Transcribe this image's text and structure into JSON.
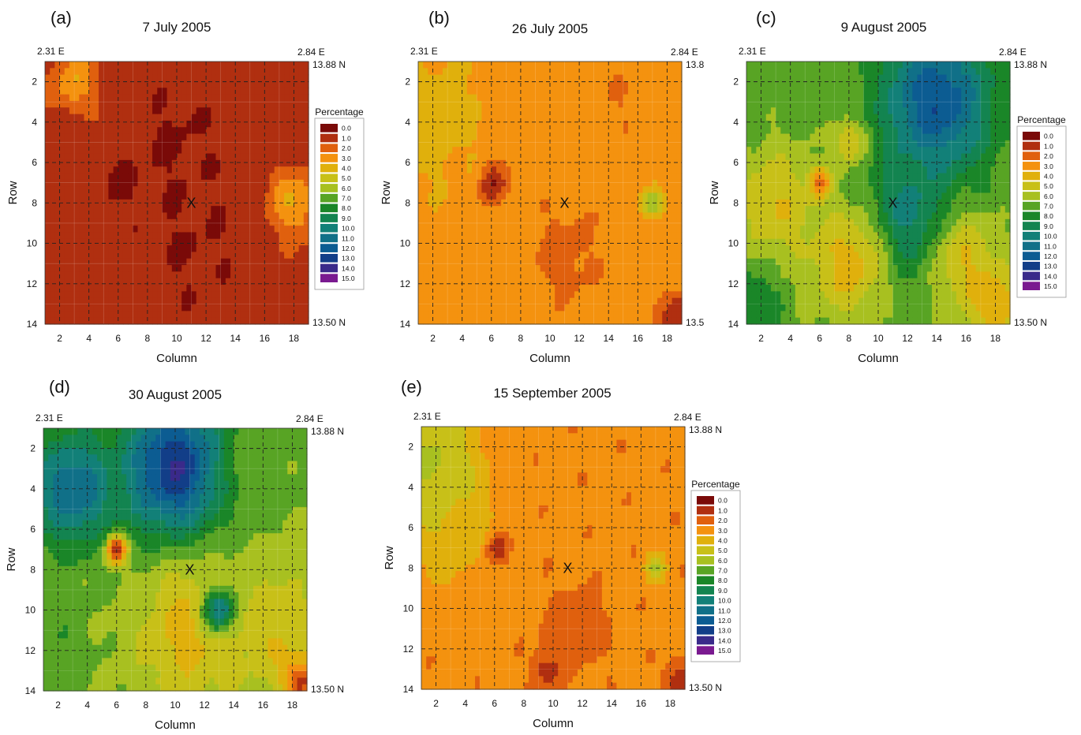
{
  "figure": {
    "colorbar_title": "Percentage"
  },
  "chart_data": [
    {
      "type": "heatmap",
      "panel": "(a)",
      "title": "7 July 2005",
      "xlabel": "Column",
      "ylabel": "Row",
      "xlim": [
        1,
        19
      ],
      "ylim": [
        14,
        1
      ],
      "xticks": [
        "2",
        "4",
        "6",
        "8",
        "10",
        "12",
        "14",
        "16",
        "18"
      ],
      "yticks": [
        "2",
        "4",
        "6",
        "8",
        "10",
        "12",
        "14"
      ],
      "corners": {
        "top_left": "2.31 E",
        "top_right": "2.84 E",
        "right_top": "13.88 N",
        "right_bottom": "13.50 N"
      },
      "marker": {
        "label": "X",
        "col": 11,
        "row": 8
      },
      "base_value": 1.0,
      "features": [
        {
          "col": 6,
          "row": 7,
          "value": 0.0,
          "spread": 0.8
        },
        {
          "col": 11,
          "row": 10,
          "value": 0.5,
          "spread": 2.5
        },
        {
          "col": 3,
          "row": 2,
          "value": 3.5,
          "spread": 1.0
        },
        {
          "col": 18,
          "row": 8,
          "value": 3.5,
          "spread": 1.2
        },
        {
          "col": 10,
          "row": 5,
          "value": 0.4,
          "spread": 2.0
        }
      ]
    },
    {
      "type": "heatmap",
      "panel": "(b)",
      "title": "26 July 2005",
      "xlabel": "Column",
      "ylabel": "Row",
      "xlim": [
        1,
        19
      ],
      "ylim": [
        14,
        1
      ],
      "xticks": [
        "2",
        "4",
        "6",
        "8",
        "10",
        "12",
        "14",
        "16",
        "18"
      ],
      "yticks": [
        "2",
        "4",
        "6",
        "8",
        "10",
        "12",
        "14"
      ],
      "corners": {
        "top_left": "2.31 E",
        "top_right": "2.84 E",
        "right_top": "13.8",
        "right_bottom": "13.5"
      },
      "marker": {
        "label": "X",
        "col": 11,
        "row": 8
      },
      "base_value": 3.0,
      "features": [
        {
          "col": 6,
          "row": 7,
          "value": 0.0,
          "spread": 0.7
        },
        {
          "col": 11,
          "row": 10.5,
          "value": 2.0,
          "spread": 1.6
        },
        {
          "col": 18.5,
          "row": 13.5,
          "value": 0.5,
          "spread": 0.8
        },
        {
          "col": 2,
          "row": 4,
          "value": 4.0,
          "spread": 2.5
        },
        {
          "col": 17,
          "row": 8,
          "value": 6.0,
          "spread": 0.5
        },
        {
          "col": 15,
          "row": 3,
          "value": 2.5,
          "spread": 1.0
        }
      ]
    },
    {
      "type": "heatmap",
      "panel": "(c)",
      "title": "9 August 2005",
      "xlabel": "Column",
      "ylabel": "Row",
      "xlim": [
        1,
        19
      ],
      "ylim": [
        14,
        1
      ],
      "xticks": [
        "2",
        "4",
        "6",
        "8",
        "10",
        "12",
        "14",
        "16",
        "18"
      ],
      "yticks": [
        "2",
        "4",
        "6",
        "8",
        "10",
        "12",
        "14"
      ],
      "corners": {
        "top_left": "2.31 E",
        "top_right": "2.84 E",
        "right_top": "13.88 N",
        "right_bottom": "13.50 N"
      },
      "marker": {
        "label": "X",
        "col": 11,
        "row": 8
      },
      "base_value": 7.0,
      "features": [
        {
          "col": 14,
          "row": 3,
          "value": 12.5,
          "spread": 2.5
        },
        {
          "col": 12,
          "row": 9,
          "value": 10.5,
          "spread": 2.0
        },
        {
          "col": 6,
          "row": 7,
          "value": 1.0,
          "spread": 0.5
        },
        {
          "col": 3,
          "row": 8,
          "value": 4.5,
          "spread": 2.0
        },
        {
          "col": 8,
          "row": 11,
          "value": 4.0,
          "spread": 2.0
        },
        {
          "col": 16,
          "row": 11,
          "value": 4.5,
          "spread": 1.8
        },
        {
          "col": 18,
          "row": 13,
          "value": 3.5,
          "spread": 1.2
        },
        {
          "col": 8,
          "row": 5,
          "value": 4.5,
          "spread": 0.8
        },
        {
          "col": 1.5,
          "row": 13,
          "value": 8.5,
          "spread": 1.2
        }
      ]
    },
    {
      "type": "heatmap",
      "panel": "(d)",
      "title": "30 August 2005",
      "xlabel": "Column",
      "ylabel": "Row",
      "xlim": [
        1,
        19
      ],
      "ylim": [
        14,
        1
      ],
      "xticks": [
        "2",
        "4",
        "6",
        "8",
        "10",
        "12",
        "14",
        "16",
        "18"
      ],
      "yticks": [
        "2",
        "4",
        "6",
        "8",
        "10",
        "12",
        "14"
      ],
      "corners": {
        "top_left": "2.31 E",
        "top_right": "2.84 E",
        "right_top": "13.88 N",
        "right_bottom": "13.50 N"
      },
      "marker": {
        "label": "X",
        "col": 11,
        "row": 8
      },
      "base_value": 6.5,
      "features": [
        {
          "col": 10,
          "row": 3,
          "value": 13.5,
          "spread": 2.5
        },
        {
          "col": 3,
          "row": 4,
          "value": 11.5,
          "spread": 2.0
        },
        {
          "col": 16,
          "row": 3,
          "value": 7.0,
          "spread": 1.8
        },
        {
          "col": 6,
          "row": 7,
          "value": 0.5,
          "spread": 0.5
        },
        {
          "col": 11,
          "row": 11,
          "value": 4.0,
          "spread": 2.5
        },
        {
          "col": 17,
          "row": 11,
          "value": 4.5,
          "spread": 2.0
        },
        {
          "col": 13,
          "row": 10,
          "value": 10.5,
          "spread": 0.8
        },
        {
          "col": 18.5,
          "row": 13.5,
          "value": 1.0,
          "spread": 0.8
        },
        {
          "col": 2,
          "row": 12,
          "value": 7.5,
          "spread": 1.5
        }
      ]
    },
    {
      "type": "heatmap",
      "panel": "(e)",
      "title": "15 September 2005",
      "xlabel": "Column",
      "ylabel": "Row",
      "xlim": [
        1,
        19
      ],
      "ylim": [
        14,
        1
      ],
      "xticks": [
        "2",
        "4",
        "6",
        "8",
        "10",
        "12",
        "14",
        "16",
        "18"
      ],
      "yticks": [
        "2",
        "4",
        "6",
        "8",
        "10",
        "12",
        "14"
      ],
      "corners": {
        "top_left": "2.31 E",
        "top_right": "2.84 E",
        "right_top": "13.88 N",
        "right_bottom": "13.50 N"
      },
      "marker": {
        "label": "X",
        "col": 11,
        "row": 8
      },
      "base_value": 2.8,
      "features": [
        {
          "col": 6,
          "row": 7,
          "value": 0.0,
          "spread": 0.6
        },
        {
          "col": 2,
          "row": 3,
          "value": 6.0,
          "spread": 2.0
        },
        {
          "col": 3,
          "row": 6,
          "value": 4.5,
          "spread": 2.0
        },
        {
          "col": 11.5,
          "row": 11,
          "value": 1.5,
          "spread": 1.3
        },
        {
          "col": 9.5,
          "row": 13,
          "value": 1.0,
          "spread": 0.7
        },
        {
          "col": 18.5,
          "row": 13.5,
          "value": 1.0,
          "spread": 0.7
        },
        {
          "col": 17,
          "row": 8,
          "value": 5.5,
          "spread": 0.5
        }
      ]
    }
  ],
  "legend": {
    "labels": [
      "0.0",
      "1.0",
      "2.0",
      "3.0",
      "4.0",
      "5.0",
      "6.0",
      "7.0",
      "8.0",
      "9.0",
      "10.0",
      "11.0",
      "12.0",
      "13.0",
      "14.0",
      "15.0"
    ],
    "colors": [
      "#7a0a08",
      "#b02f10",
      "#e0600e",
      "#f4920f",
      "#e0b00c",
      "#c8c018",
      "#a8c020",
      "#58a424",
      "#1a8628",
      "#138450",
      "#128078",
      "#107088",
      "#0c5c92",
      "#123e88",
      "#3a2a8a",
      "#7a1a90"
    ]
  }
}
